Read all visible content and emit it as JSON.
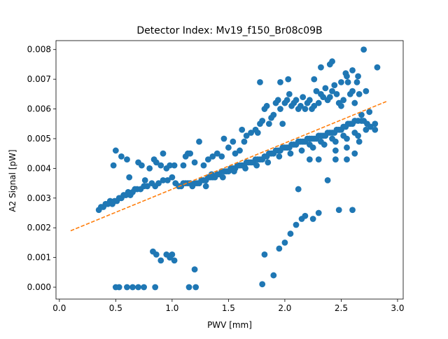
{
  "chart_data": {
    "type": "scatter",
    "title": "Detector Index: Mv19_f150_Br08c09B",
    "xlabel": "PWV [mm]",
    "ylabel": "A2 Signal [pW]",
    "xlim": [
      -0.03,
      3.05
    ],
    "ylim": [
      -0.0004,
      0.0083
    ],
    "xticks": [
      0.0,
      0.5,
      1.0,
      1.5,
      2.0,
      2.5,
      3.0
    ],
    "xtick_labels": [
      "0.0",
      "0.5",
      "1.0",
      "1.5",
      "2.0",
      "2.5",
      "3.0"
    ],
    "yticks": [
      0.0,
      0.001,
      0.002,
      0.003,
      0.004,
      0.005,
      0.006,
      0.007,
      0.008
    ],
    "ytick_labels": [
      "0.000",
      "0.001",
      "0.002",
      "0.003",
      "0.004",
      "0.005",
      "0.006",
      "0.007",
      "0.008"
    ],
    "grid": false,
    "legend": "none",
    "series": [
      {
        "name": "data",
        "style": "scatter",
        "color": "#1f77b4",
        "points": [
          [
            0.35,
            0.0026
          ],
          [
            0.37,
            0.0027
          ],
          [
            0.39,
            0.0027
          ],
          [
            0.41,
            0.0028
          ],
          [
            0.43,
            0.0028
          ],
          [
            0.45,
            0.0029
          ],
          [
            0.47,
            0.0028
          ],
          [
            0.49,
            0.0029
          ],
          [
            0.51,
            0.0029
          ],
          [
            0.53,
            0.003
          ],
          [
            0.55,
            0.003
          ],
          [
            0.57,
            0.0031
          ],
          [
            0.59,
            0.0031
          ],
          [
            0.61,
            0.0032
          ],
          [
            0.63,
            0.0031
          ],
          [
            0.65,
            0.0032
          ],
          [
            0.67,
            0.0033
          ],
          [
            0.69,
            0.0033
          ],
          [
            0.72,
            0.0033
          ],
          [
            0.75,
            0.0034
          ],
          [
            0.78,
            0.0034
          ],
          [
            0.82,
            0.0035
          ],
          [
            0.85,
            0.0034
          ],
          [
            0.88,
            0.0035
          ],
          [
            0.92,
            0.0036
          ],
          [
            0.96,
            0.0036
          ],
          [
            1.0,
            0.0037
          ],
          [
            1.03,
            0.0035
          ],
          [
            1.06,
            0.0034
          ],
          [
            1.08,
            0.0034
          ],
          [
            1.1,
            0.0035
          ],
          [
            1.12,
            0.0035
          ],
          [
            1.14,
            0.0035
          ],
          [
            1.16,
            0.0035
          ],
          [
            1.18,
            0.0034
          ],
          [
            1.2,
            0.0035
          ],
          [
            1.22,
            0.0035
          ],
          [
            1.24,
            0.0035
          ],
          [
            1.26,
            0.0036
          ],
          [
            1.28,
            0.0036
          ],
          [
            1.3,
            0.0036
          ],
          [
            1.32,
            0.0037
          ],
          [
            1.34,
            0.0037
          ],
          [
            1.36,
            0.0037
          ],
          [
            1.38,
            0.0037
          ],
          [
            1.4,
            0.0038
          ],
          [
            1.42,
            0.0038
          ],
          [
            1.44,
            0.0039
          ],
          [
            1.46,
            0.0039
          ],
          [
            1.48,
            0.0039
          ],
          [
            1.5,
            0.0039
          ],
          [
            1.52,
            0.004
          ],
          [
            1.54,
            0.004
          ],
          [
            1.56,
            0.004
          ],
          [
            1.58,
            0.0041
          ],
          [
            1.6,
            0.0041
          ],
          [
            1.62,
            0.0041
          ],
          [
            1.64,
            0.0041
          ],
          [
            1.66,
            0.0042
          ],
          [
            1.68,
            0.0042
          ],
          [
            1.7,
            0.0042
          ],
          [
            1.72,
            0.0042
          ],
          [
            1.74,
            0.0043
          ],
          [
            1.76,
            0.0043
          ],
          [
            1.78,
            0.0043
          ],
          [
            1.8,
            0.0043
          ],
          [
            1.82,
            0.0044
          ],
          [
            1.84,
            0.0044
          ],
          [
            1.86,
            0.0045
          ],
          [
            1.88,
            0.0045
          ],
          [
            1.9,
            0.0045
          ],
          [
            1.92,
            0.0046
          ],
          [
            1.94,
            0.0046
          ],
          [
            1.96,
            0.0046
          ],
          [
            1.98,
            0.0047
          ],
          [
            2.0,
            0.0047
          ],
          [
            2.02,
            0.0047
          ],
          [
            2.04,
            0.0047
          ],
          [
            2.06,
            0.0048
          ],
          [
            2.08,
            0.0048
          ],
          [
            2.1,
            0.0048
          ],
          [
            2.12,
            0.0049
          ],
          [
            2.14,
            0.0049
          ],
          [
            2.16,
            0.0049
          ],
          [
            2.18,
            0.0049
          ],
          [
            2.2,
            0.005
          ],
          [
            2.22,
            0.005
          ],
          [
            2.24,
            0.005
          ],
          [
            2.26,
            0.005
          ],
          [
            2.28,
            0.005
          ],
          [
            2.3,
            0.0051
          ],
          [
            2.32,
            0.0051
          ],
          [
            2.34,
            0.0051
          ],
          [
            2.36,
            0.0051
          ],
          [
            2.38,
            0.0052
          ],
          [
            2.4,
            0.0052
          ],
          [
            2.42,
            0.0052
          ],
          [
            2.44,
            0.0052
          ],
          [
            2.46,
            0.0053
          ],
          [
            2.48,
            0.0053
          ],
          [
            2.5,
            0.0053
          ],
          [
            2.52,
            0.0054
          ],
          [
            2.54,
            0.0054
          ],
          [
            2.56,
            0.0055
          ],
          [
            2.58,
            0.0055
          ],
          [
            2.6,
            0.0055
          ],
          [
            2.62,
            0.0056
          ],
          [
            2.65,
            0.0056
          ],
          [
            2.68,
            0.0056
          ],
          [
            2.7,
            0.0056
          ],
          [
            2.73,
            0.0055
          ],
          [
            2.76,
            0.0054
          ],
          [
            2.8,
            0.0053
          ],
          [
            2.8,
            0.0055
          ],
          [
            1.3,
            0.0034
          ],
          [
            1.35,
            0.0038
          ],
          [
            1.45,
            0.0037
          ],
          [
            1.55,
            0.0039
          ],
          [
            1.65,
            0.004
          ],
          [
            1.75,
            0.0041
          ],
          [
            1.85,
            0.0042
          ],
          [
            1.95,
            0.0044
          ],
          [
            2.05,
            0.0045
          ],
          [
            2.15,
            0.0046
          ],
          [
            2.25,
            0.0047
          ],
          [
            2.35,
            0.0048
          ],
          [
            2.45,
            0.0049
          ],
          [
            2.55,
            0.005
          ],
          [
            2.22,
            0.0048
          ],
          [
            2.32,
            0.0049
          ],
          [
            2.42,
            0.005
          ],
          [
            2.52,
            0.0051
          ],
          [
            2.62,
            0.0052
          ],
          [
            2.72,
            0.0053
          ],
          [
            2.45,
            0.0046
          ],
          [
            2.55,
            0.0047
          ],
          [
            2.65,
            0.0051
          ],
          [
            0.48,
            0.0041
          ],
          [
            0.5,
            0.0046
          ],
          [
            0.55,
            0.0044
          ],
          [
            0.6,
            0.0043
          ],
          [
            0.62,
            0.0037
          ],
          [
            0.7,
            0.0042
          ],
          [
            0.73,
            0.0041
          ],
          [
            0.76,
            0.0036
          ],
          [
            0.8,
            0.004
          ],
          [
            0.84,
            0.0043
          ],
          [
            0.86,
            0.0042
          ],
          [
            0.9,
            0.0041
          ],
          [
            0.92,
            0.0045
          ],
          [
            0.95,
            0.004
          ],
          [
            0.98,
            0.0041
          ],
          [
            1.02,
            0.0041
          ],
          [
            1.1,
            0.0041
          ],
          [
            1.12,
            0.0044
          ],
          [
            1.14,
            0.0045
          ],
          [
            1.16,
            0.0045
          ],
          [
            1.2,
            0.0042
          ],
          [
            1.24,
            0.0049
          ],
          [
            1.28,
            0.0041
          ],
          [
            1.32,
            0.0043
          ],
          [
            1.36,
            0.0044
          ],
          [
            1.4,
            0.0045
          ],
          [
            1.44,
            0.0044
          ],
          [
            1.46,
            0.005
          ],
          [
            1.5,
            0.0047
          ],
          [
            1.54,
            0.0049
          ],
          [
            1.56,
            0.0045
          ],
          [
            1.6,
            0.0046
          ],
          [
            1.62,
            0.0053
          ],
          [
            1.64,
            0.0049
          ],
          [
            1.66,
            0.0051
          ],
          [
            1.7,
            0.0052
          ],
          [
            1.74,
            0.0053
          ],
          [
            1.76,
            0.0052
          ],
          [
            1.78,
            0.0055
          ],
          [
            1.8,
            0.0056
          ],
          [
            1.82,
            0.006
          ],
          [
            1.84,
            0.0061
          ],
          [
            1.86,
            0.0055
          ],
          [
            1.88,
            0.0057
          ],
          [
            1.9,
            0.0058
          ],
          [
            1.92,
            0.0062
          ],
          [
            1.94,
            0.0063
          ],
          [
            1.96,
            0.006
          ],
          [
            1.98,
            0.0055
          ],
          [
            2.0,
            0.0062
          ],
          [
            2.02,
            0.0063
          ],
          [
            2.04,
            0.0065
          ],
          [
            2.06,
            0.0061
          ],
          [
            2.08,
            0.0062
          ],
          [
            2.1,
            0.0063
          ],
          [
            2.12,
            0.006
          ],
          [
            2.14,
            0.0061
          ],
          [
            2.16,
            0.0064
          ],
          [
            2.18,
            0.006
          ],
          [
            2.2,
            0.0062
          ],
          [
            2.22,
            0.0063
          ],
          [
            2.24,
            0.006
          ],
          [
            2.26,
            0.0061
          ],
          [
            2.28,
            0.0066
          ],
          [
            2.3,
            0.0062
          ],
          [
            2.32,
            0.0065
          ],
          [
            2.34,
            0.0064
          ],
          [
            2.36,
            0.0067
          ],
          [
            2.38,
            0.0063
          ],
          [
            2.4,
            0.0064
          ],
          [
            2.42,
            0.0066
          ],
          [
            2.44,
            0.0068
          ],
          [
            2.46,
            0.0065
          ],
          [
            2.48,
            0.0062
          ],
          [
            2.5,
            0.0061
          ],
          [
            2.52,
            0.0063
          ],
          [
            2.54,
            0.0072
          ],
          [
            2.56,
            0.0069
          ],
          [
            2.58,
            0.0065
          ],
          [
            2.6,
            0.0066
          ],
          [
            2.62,
            0.0062
          ],
          [
            2.64,
            0.0069
          ],
          [
            2.66,
            0.0065
          ],
          [
            2.68,
            0.0058
          ],
          [
            2.7,
            0.008
          ],
          [
            2.72,
            0.0066
          ],
          [
            2.75,
            0.0059
          ],
          [
            2.82,
            0.0074
          ],
          [
            1.78,
            0.0069
          ],
          [
            1.96,
            0.0069
          ],
          [
            2.03,
            0.007
          ],
          [
            2.26,
            0.007
          ],
          [
            2.32,
            0.0074
          ],
          [
            2.4,
            0.0075
          ],
          [
            2.42,
            0.0076
          ],
          [
            2.5,
            0.0069
          ],
          [
            2.55,
            0.0071
          ],
          [
            2.6,
            0.0073
          ],
          [
            2.65,
            0.0071
          ],
          [
            2.12,
            0.0033
          ],
          [
            2.22,
            0.0043
          ],
          [
            2.3,
            0.0043
          ],
          [
            2.38,
            0.0036
          ],
          [
            2.45,
            0.0043
          ],
          [
            2.55,
            0.0043
          ],
          [
            2.62,
            0.0045
          ],
          [
            2.66,
            0.0049
          ],
          [
            0.5,
            0.0
          ],
          [
            0.53,
            0.0
          ],
          [
            0.6,
            0.0
          ],
          [
            0.65,
            0.0
          ],
          [
            0.7,
            0.0
          ],
          [
            0.75,
            0.0
          ],
          [
            0.85,
            0.0
          ],
          [
            1.15,
            0.0
          ],
          [
            1.21,
            0.0
          ],
          [
            0.83,
            0.0012
          ],
          [
            0.86,
            0.0011
          ],
          [
            0.9,
            0.0009
          ],
          [
            0.95,
            0.0011
          ],
          [
            0.98,
            0.001
          ],
          [
            1.0,
            0.0011
          ],
          [
            1.02,
            0.0009
          ],
          [
            1.2,
            0.0006
          ],
          [
            1.8,
            0.0001
          ],
          [
            1.82,
            0.0011
          ],
          [
            1.9,
            0.0004
          ],
          [
            1.95,
            0.0013
          ],
          [
            2.0,
            0.0015
          ],
          [
            2.05,
            0.0018
          ],
          [
            2.1,
            0.0021
          ],
          [
            2.15,
            0.0023
          ],
          [
            2.18,
            0.0024
          ],
          [
            2.25,
            0.0023
          ],
          [
            2.3,
            0.0025
          ],
          [
            2.48,
            0.0026
          ],
          [
            2.6,
            0.0026
          ]
        ]
      },
      {
        "name": "fit",
        "style": "dashed-line",
        "color": "#ff7f0e",
        "x": [
          0.1,
          2.9
        ],
        "y": [
          0.0019,
          0.00625
        ]
      }
    ]
  }
}
